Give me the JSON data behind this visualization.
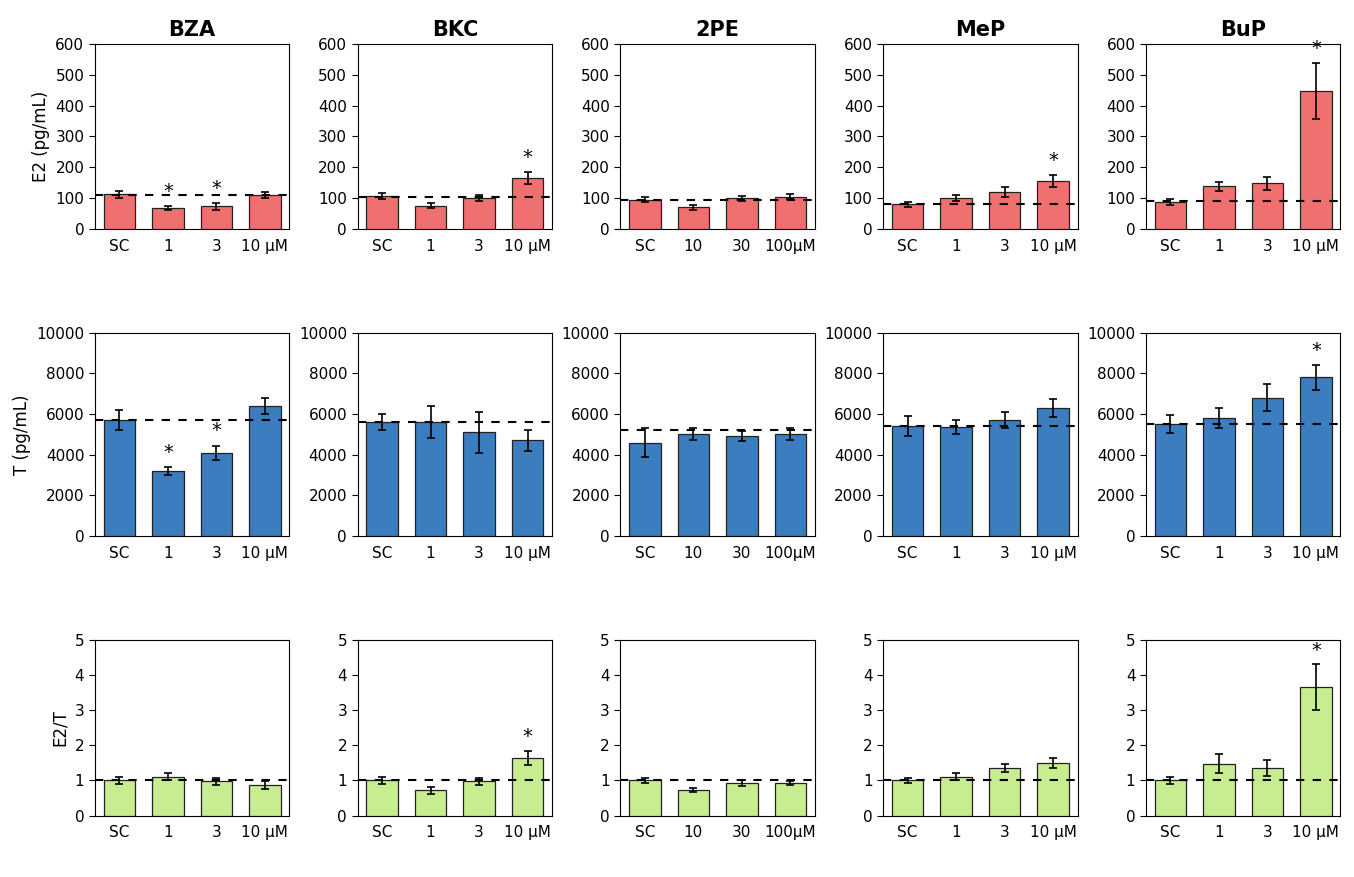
{
  "compounds": [
    "BZA",
    "BKC",
    "2PE",
    "MeP",
    "BuP"
  ],
  "x_labels": {
    "BZA": [
      "SC",
      "1",
      "3",
      "10 μM"
    ],
    "BKC": [
      "SC",
      "1",
      "3",
      "10 μM"
    ],
    "2PE": [
      "SC",
      "10",
      "30",
      "100μM"
    ],
    "MeP": [
      "SC",
      "1",
      "3",
      "10 μM"
    ],
    "BuP": [
      "SC",
      "1",
      "3",
      "10 μM"
    ]
  },
  "E2_values": {
    "BZA": [
      112,
      68,
      73,
      110
    ],
    "BKC": [
      108,
      75,
      100,
      165
    ],
    "2PE": [
      95,
      70,
      100,
      105
    ],
    "MeP": [
      80,
      100,
      120,
      155
    ],
    "BuP": [
      88,
      138,
      148,
      448
    ]
  },
  "E2_errors": {
    "BZA": [
      10,
      8,
      12,
      10
    ],
    "BKC": [
      10,
      8,
      10,
      20
    ],
    "2PE": [
      8,
      8,
      8,
      8
    ],
    "MeP": [
      8,
      10,
      15,
      20
    ],
    "BuP": [
      10,
      15,
      20,
      90
    ]
  },
  "E2_baselines": {
    "BZA": 110,
    "BKC": 105,
    "2PE": 95,
    "MeP": 80,
    "BuP": 90
  },
  "E2_sig": {
    "BZA": [
      false,
      true,
      true,
      false
    ],
    "BKC": [
      false,
      false,
      false,
      true
    ],
    "2PE": [
      false,
      false,
      false,
      false
    ],
    "MeP": [
      false,
      false,
      false,
      true
    ],
    "BuP": [
      false,
      false,
      false,
      true
    ]
  },
  "T_values": {
    "BZA": [
      5700,
      3200,
      4100,
      6400
    ],
    "BKC": [
      5600,
      5600,
      5100,
      4700
    ],
    "2PE": [
      4600,
      5000,
      4900,
      5000
    ],
    "MeP": [
      5400,
      5350,
      5700,
      6300
    ],
    "BuP": [
      5500,
      5800,
      6800,
      7800
    ]
  },
  "T_errors": {
    "BZA": [
      500,
      200,
      350,
      400
    ],
    "BKC": [
      400,
      800,
      1000,
      500
    ],
    "2PE": [
      700,
      300,
      250,
      300
    ],
    "MeP": [
      500,
      350,
      400,
      450
    ],
    "BuP": [
      450,
      500,
      650,
      600
    ]
  },
  "T_baselines": {
    "BZA": 5700,
    "BKC": 5600,
    "2PE": 5200,
    "MeP": 5400,
    "BuP": 5500
  },
  "T_sig": {
    "BZA": [
      false,
      true,
      true,
      false
    ],
    "BKC": [
      false,
      false,
      false,
      false
    ],
    "2PE": [
      false,
      false,
      false,
      false
    ],
    "MeP": [
      false,
      false,
      false,
      false
    ],
    "BuP": [
      false,
      false,
      false,
      true
    ]
  },
  "R_values": {
    "BZA": [
      1.0,
      1.1,
      0.97,
      0.87
    ],
    "BKC": [
      1.0,
      0.72,
      0.97,
      1.65
    ],
    "2PE": [
      1.0,
      0.73,
      0.93,
      0.93
    ],
    "MeP": [
      1.0,
      1.1,
      1.35,
      1.5
    ],
    "BuP": [
      1.0,
      1.48,
      1.35,
      3.65
    ]
  },
  "R_errors": {
    "BZA": [
      0.1,
      0.1,
      0.1,
      0.1
    ],
    "BKC": [
      0.1,
      0.1,
      0.1,
      0.2
    ],
    "2PE": [
      0.08,
      0.06,
      0.08,
      0.06
    ],
    "MeP": [
      0.08,
      0.1,
      0.12,
      0.15
    ],
    "BuP": [
      0.1,
      0.28,
      0.22,
      0.65
    ]
  },
  "R_baselines": {
    "BZA": 1.0,
    "BKC": 1.0,
    "2PE": 1.0,
    "MeP": 1.0,
    "BuP": 1.0
  },
  "R_sig": {
    "BZA": [
      false,
      false,
      false,
      false
    ],
    "BKC": [
      false,
      false,
      false,
      true
    ],
    "2PE": [
      false,
      false,
      false,
      false
    ],
    "MeP": [
      false,
      false,
      false,
      false
    ],
    "BuP": [
      false,
      false,
      false,
      true
    ]
  },
  "bar_color_E2": "#F07070",
  "bar_color_T": "#3B7DBF",
  "bar_color_R": "#C8EC90",
  "bar_edge_color": "#222222",
  "title_fontsize": 15,
  "label_fontsize": 12,
  "tick_fontsize": 11,
  "E2_ylim": [
    0,
    600
  ],
  "T_ylim": [
    0,
    10000
  ],
  "R_ylim": [
    0,
    5
  ],
  "E2_yticks": [
    0,
    100,
    200,
    300,
    400,
    500,
    600
  ],
  "T_yticks": [
    0,
    2000,
    4000,
    6000,
    8000,
    10000
  ],
  "R_yticks": [
    0,
    1,
    2,
    3,
    4,
    5
  ],
  "row_labels": [
    "E2 (pg/mL)",
    "T (pg/mL)",
    "E2/T"
  ]
}
